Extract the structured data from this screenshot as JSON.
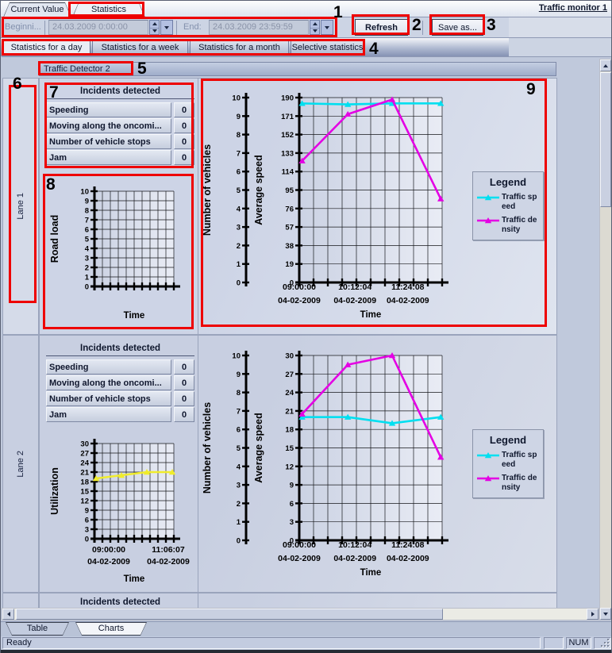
{
  "window": {
    "title": "Traffic monitor 1"
  },
  "top_tabs": [
    {
      "label": "Current Value",
      "active": false
    },
    {
      "label": "Statistics",
      "active": true
    }
  ],
  "toolbar": {
    "begin_label": "Beginni...",
    "begin_value": "24.03.2009 0:00:00",
    "end_label": "End:",
    "end_value": "24.03.2009 23:59:59",
    "refresh_label": "Refresh",
    "save_as_label": "Save as..."
  },
  "stats_tabs": [
    {
      "label": "Statistics for a day",
      "active": true
    },
    {
      "label": "Statistics for a week",
      "active": false
    },
    {
      "label": "Statistics for a month",
      "active": false
    },
    {
      "label": "Selective statistics",
      "active": false
    }
  ],
  "detector_header": "Traffic Detector 2",
  "incidents": {
    "header": "Incidents detected",
    "rows": [
      {
        "label": "Speeding",
        "value": "0"
      },
      {
        "label": "Moving along the oncomi...",
        "value": "0"
      },
      {
        "label": "Number of vehicle stops",
        "value": "0"
      },
      {
        "label": "Jam",
        "value": "0"
      }
    ]
  },
  "lanes": [
    {
      "label": "Lane 1"
    },
    {
      "label": "Lane 2"
    }
  ],
  "legend": {
    "title": "Legend",
    "items": [
      {
        "label": "Traffic speed",
        "color": "#00dff0"
      },
      {
        "label": "Traffic density",
        "color": "#e400e4"
      }
    ]
  },
  "bottom_tabs": [
    {
      "label": "Table",
      "active": false
    },
    {
      "label": "Charts",
      "active": true
    }
  ],
  "status_bar": {
    "message": "Ready",
    "num_indicator": "NUM"
  },
  "annotations": [
    "1",
    "2",
    "3",
    "4",
    "5",
    "6",
    "7",
    "8",
    "9"
  ],
  "chart_data": [
    {
      "id": "lane1-road-load",
      "type": "line",
      "title": "Lane 1 — Road load",
      "xlabel": "Time",
      "ylabel": "Road load",
      "ylim": [
        0,
        10
      ],
      "ytick_step": 1,
      "grid": true,
      "x_ticks": [],
      "series": []
    },
    {
      "id": "lane1-speed-density",
      "type": "line",
      "title": "Lane 1 — Traffic speed and density",
      "xlabel": "Time",
      "grid": true,
      "legend_position": "right",
      "axes": [
        {
          "label": "Number of vehicles",
          "ylim": [
            0,
            10
          ],
          "tick_step": 1
        },
        {
          "label": "Average speed",
          "ylim": [
            0,
            190
          ],
          "tick_step": 19
        }
      ],
      "x_ticks": [
        {
          "pos": 0.0,
          "time": "09:00:00",
          "date": "04-02-2009"
        },
        {
          "pos": 0.39,
          "time": "10:12:04",
          "date": "04-02-2009"
        },
        {
          "pos": 0.76,
          "time": "11:24:08",
          "date": "04-02-2009"
        }
      ],
      "series": [
        {
          "name": "Traffic speed",
          "color": "#00dff0",
          "x": [
            0.02,
            0.34,
            0.65,
            0.99
          ],
          "values": [
            184,
            183,
            184,
            184
          ]
        },
        {
          "name": "Traffic density",
          "color": "#e400e4",
          "x": [
            0.02,
            0.34,
            0.65,
            0.99
          ],
          "values": [
            125,
            173,
            188,
            86
          ]
        }
      ]
    },
    {
      "id": "lane2-utilization",
      "type": "line",
      "title": "Lane 2 — Utilization",
      "xlabel": "Time",
      "ylabel": "Utilization",
      "ylim": [
        0,
        30
      ],
      "ytick_step": 3,
      "grid": true,
      "x_ticks": [
        {
          "pos": 0.18,
          "time": "09:00:00",
          "date": "04-02-2009"
        },
        {
          "pos": 0.93,
          "time": "11:06:07",
          "date": "04-02-2009"
        }
      ],
      "series": [
        {
          "name": "Utilization",
          "color": "#f0ec2c",
          "x": [
            0.02,
            0.34,
            0.66,
            0.98
          ],
          "values": [
            19,
            20,
            21,
            21
          ]
        }
      ]
    },
    {
      "id": "lane2-speed-density",
      "type": "line",
      "title": "Lane 2 — Traffic speed and density",
      "xlabel": "Time",
      "grid": true,
      "legend_position": "right",
      "axes": [
        {
          "label": "Number of vehicles",
          "ylim": [
            0,
            10
          ],
          "tick_step": 1
        },
        {
          "label": "Average speed",
          "ylim": [
            0,
            30
          ],
          "tick_step": 3
        }
      ],
      "x_ticks": [
        {
          "pos": 0.0,
          "time": "09:00:00",
          "date": "04-02-2009"
        },
        {
          "pos": 0.39,
          "time": "10:12:04",
          "date": "04-02-2009"
        },
        {
          "pos": 0.76,
          "time": "11:24:08",
          "date": "04-02-2009"
        }
      ],
      "series": [
        {
          "name": "Traffic speed",
          "color": "#00dff0",
          "x": [
            0.02,
            0.34,
            0.65,
            0.99
          ],
          "values": [
            20,
            20,
            19,
            20
          ]
        },
        {
          "name": "Traffic density",
          "color": "#e400e4",
          "x": [
            0.02,
            0.34,
            0.65,
            0.99
          ],
          "values": [
            20.5,
            28.5,
            30,
            13.5
          ]
        }
      ]
    }
  ]
}
